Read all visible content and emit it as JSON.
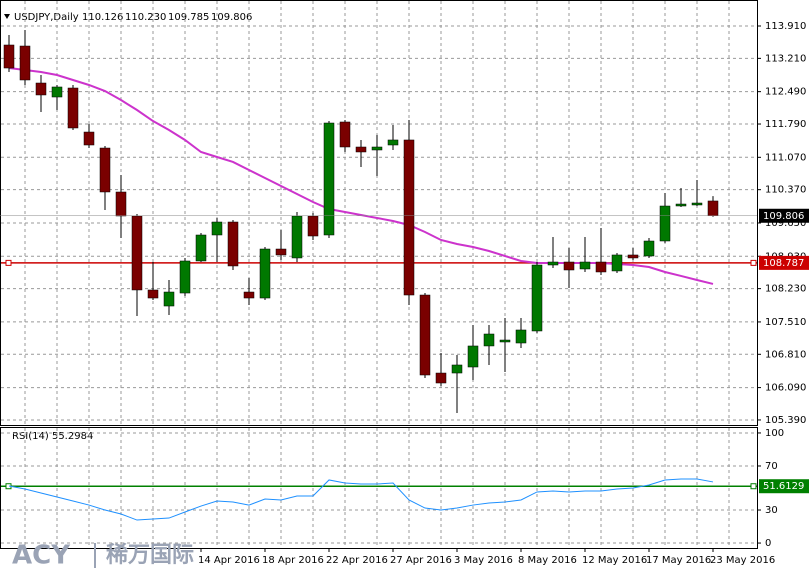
{
  "chart_data": [
    {
      "type": "candlestick",
      "title": "USDJPY,Daily",
      "title_values": [
        "110.126",
        "110.230",
        "109.785",
        "109.806"
      ],
      "categories": [
        null,
        null,
        null,
        null,
        null,
        null,
        null,
        null,
        null,
        null,
        null,
        null,
        "14 Apr 2016",
        null,
        null,
        null,
        "18 Apr 2016",
        null,
        null,
        null,
        "22 Apr 2016",
        null,
        null,
        null,
        "27 Apr 2016",
        null,
        null,
        null,
        "3 May 2016",
        null,
        null,
        null,
        "8 May 2016",
        null,
        null,
        null,
        "12 May 2016",
        null,
        null,
        null,
        "17 May 2016",
        null,
        null,
        null,
        "23 May 2016"
      ],
      "open": [
        113.499,
        113.477,
        112.677,
        112.374,
        112.569,
        111.617,
        111.271,
        110.32,
        109.801,
        108.201,
        107.854,
        108.135,
        108.828,
        109.39,
        109.671,
        108.157,
        108.027,
        109.087,
        108.893,
        109.801,
        109.39,
        111.834,
        111.293,
        111.228,
        111.336,
        111.445,
        108.092,
        106.405,
        106.405,
        106.535,
        106.99,
        107.076,
        107.054,
        107.314,
        108.741,
        108.806,
        108.655,
        108.806,
        108.612,
        108.958,
        108.936,
        109.26,
        110.017,
        110.039,
        110.126
      ],
      "high": [
        113.715,
        113.823,
        112.85,
        112.634,
        112.634,
        111.79,
        111.315,
        110.688,
        109.844,
        108.806,
        108.417,
        108.893,
        109.433,
        109.758,
        109.714,
        108.46,
        109.131,
        109.498,
        109.887,
        109.866,
        111.855,
        111.877,
        111.445,
        111.553,
        111.769,
        111.877,
        108.135,
        106.838,
        106.795,
        107.444,
        107.444,
        107.595,
        107.595,
        108.806,
        109.347,
        109.109,
        109.347,
        109.541,
        109.001,
        109.109,
        109.325,
        110.298,
        110.406,
        110.579,
        110.23
      ],
      "low": [
        112.915,
        112.634,
        112.05,
        112.093,
        111.661,
        111.271,
        109.931,
        109.325,
        107.638,
        107.984,
        107.66,
        108.071,
        108.806,
        108.806,
        108.633,
        107.876,
        107.984,
        108.849,
        108.806,
        109.282,
        109.325,
        111.185,
        110.86,
        110.666,
        111.228,
        107.876,
        106.297,
        106.124,
        105.541,
        106.254,
        106.579,
        106.427,
        106.946,
        107.271,
        108.677,
        108.244,
        108.59,
        108.525,
        108.568,
        108.849,
        108.893,
        109.217,
        109.995,
        110.017,
        109.785
      ],
      "close": [
        113.001,
        112.742,
        112.418,
        112.591,
        111.704,
        111.336,
        110.32,
        109.801,
        108.201,
        108.027,
        108.157,
        108.828,
        109.39,
        109.671,
        108.72,
        108.027,
        109.087,
        108.958,
        109.801,
        109.368,
        111.812,
        111.293,
        111.185,
        111.293,
        111.445,
        108.092,
        106.362,
        106.189,
        106.579,
        106.99,
        107.249,
        107.119,
        107.336,
        108.741,
        108.806,
        108.633,
        108.806,
        108.59,
        108.958,
        108.893,
        109.26,
        110.017,
        110.06,
        110.082,
        109.806
      ],
      "last_label": "109.806",
      "bull_color": "#007800",
      "bear_color": "#7a0000",
      "series": [
        {
          "color": "#cc33cc",
          "values": [
            113.001,
            112.958,
            112.915,
            112.85,
            112.742,
            112.634,
            112.504,
            112.309,
            112.093,
            111.855,
            111.661,
            111.445,
            111.185,
            111.077,
            110.969,
            110.796,
            110.623,
            110.45,
            110.277,
            110.103,
            109.952,
            109.887,
            109.823,
            109.758,
            109.693,
            109.606,
            109.455,
            109.282,
            109.195,
            109.131,
            109.044,
            108.936,
            108.828,
            108.784,
            108.784,
            108.784,
            108.784,
            108.784,
            108.763,
            108.741,
            108.698,
            108.59,
            108.504,
            108.417,
            108.331
          ]
        }
      ],
      "hline": {
        "value": 108.787,
        "label": "108.787",
        "color": "#cc0000"
      },
      "ylim": [
        105.281,
        114.472
      ],
      "yticks": [
        {
          "value": 113.91,
          "label": "113.910"
        },
        {
          "value": 113.21,
          "label": "113.210"
        },
        {
          "value": 112.49,
          "label": "112.490"
        },
        {
          "value": 111.79,
          "label": "111.790"
        },
        {
          "value": 111.07,
          "label": "111.070"
        },
        {
          "value": 110.37,
          "label": "110.370"
        },
        {
          "value": 109.65,
          "label": "109.650"
        },
        {
          "value": 108.93,
          "label": "108.930"
        },
        {
          "value": 108.23,
          "label": "108.230"
        },
        {
          "value": 107.51,
          "label": "107.510"
        },
        {
          "value": 106.81,
          "label": "106.810"
        },
        {
          "value": 106.09,
          "label": "106.090"
        },
        {
          "value": 105.39,
          "label": "105.390"
        }
      ],
      "grid": true
    },
    {
      "type": "line",
      "title": "RSI(14) 55.2984",
      "series": [
        {
          "color": "#1e90ff",
          "values": [
            51.8,
            49.1,
            45.5,
            41.8,
            38.2,
            34.5,
            30.0,
            26.4,
            20.9,
            21.8,
            22.7,
            28.2,
            33.6,
            38.2,
            37.3,
            34.5,
            40.0,
            39.1,
            42.7,
            42.7,
            57.3,
            54.5,
            53.6,
            53.6,
            54.5,
            39.1,
            31.8,
            30.0,
            31.8,
            34.5,
            36.4,
            37.3,
            39.1,
            46.4,
            47.3,
            46.4,
            47.3,
            47.3,
            49.1,
            50.0,
            52.7,
            57.3,
            58.2,
            58.2,
            55.5
          ]
        }
      ],
      "hline": {
        "value": 51.6129,
        "label": "51.6129",
        "color": "#008000"
      },
      "ylim": [
        -4.5,
        104.5
      ],
      "yticks": [
        0,
        30,
        70,
        100
      ],
      "grid": true
    }
  ],
  "watermark": {
    "brand": "ACY",
    "name": "稀万国际"
  }
}
